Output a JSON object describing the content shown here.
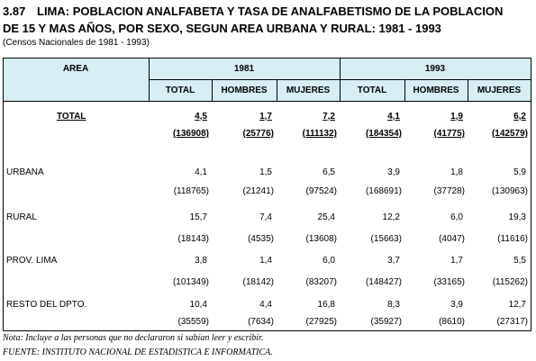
{
  "header": {
    "number": "3.87",
    "title_line1": "LIMA: POBLACION ANALFABETA Y TASA DE ANALFABETISMO DE LA POBLACION",
    "title_line2": "DE 15 Y MAS AÑOS, POR SEXO, SEGUN AREA URBANA Y RURAL: 1981 - 1993",
    "subtitle": "(Censos Nacionales de 1981 - 1993)"
  },
  "table": {
    "area_header": "AREA",
    "years": [
      "1981",
      "1993"
    ],
    "columns": [
      "TOTAL",
      "HOMBRES",
      "MUJERES",
      "TOTAL",
      "HOMBRES",
      "MUJERES"
    ],
    "rows": [
      {
        "label": "TOTAL",
        "rates": [
          "4,5",
          "1,7",
          "7,2",
          "4,1",
          "1,9",
          "6,2"
        ],
        "counts": [
          "(136908)",
          "(25776)",
          "(111132)",
          "(184354)",
          "(41775)",
          "(142579)"
        ]
      },
      {
        "label": "URBANA",
        "rates": [
          "4,1",
          "1,5",
          "6,5",
          "3,9",
          "1,8",
          "5,9"
        ],
        "counts": [
          "(118765)",
          "(21241)",
          "(97524)",
          "(168691)",
          "(37728)",
          "(130963)"
        ]
      },
      {
        "label": "RURAL",
        "rates": [
          "15,7",
          "7,4",
          "25,4",
          "12,2",
          "6,0",
          "19,3"
        ],
        "counts": [
          "(18143)",
          "(4535)",
          "(13608)",
          "(15663)",
          "(4047)",
          "(11616)"
        ]
      },
      {
        "label": "PROV. LIMA",
        "rates": [
          "3,8",
          "1,4",
          "6,0",
          "3,7",
          "1,7",
          "5,5"
        ],
        "counts": [
          "(101349)",
          "(18142)",
          "(83207)",
          "(148427)",
          "(33165)",
          "(115262)"
        ]
      },
      {
        "label": "RESTO DEL DPTO.",
        "rates": [
          "10,4",
          "4,4",
          "16,8",
          "8,3",
          "3,9",
          "12,7"
        ],
        "counts": [
          "(35559)",
          "(7634)",
          "(27925)",
          "(35927)",
          "(8610)",
          "(27317)"
        ]
      }
    ]
  },
  "footer": {
    "note": "Nota: Incluye a las personas que no declararon si sabían leer y escribir.",
    "source": "FUENTE: INSTITUTO NACIONAL DE ESTADISTICA E INFORMATICA."
  }
}
